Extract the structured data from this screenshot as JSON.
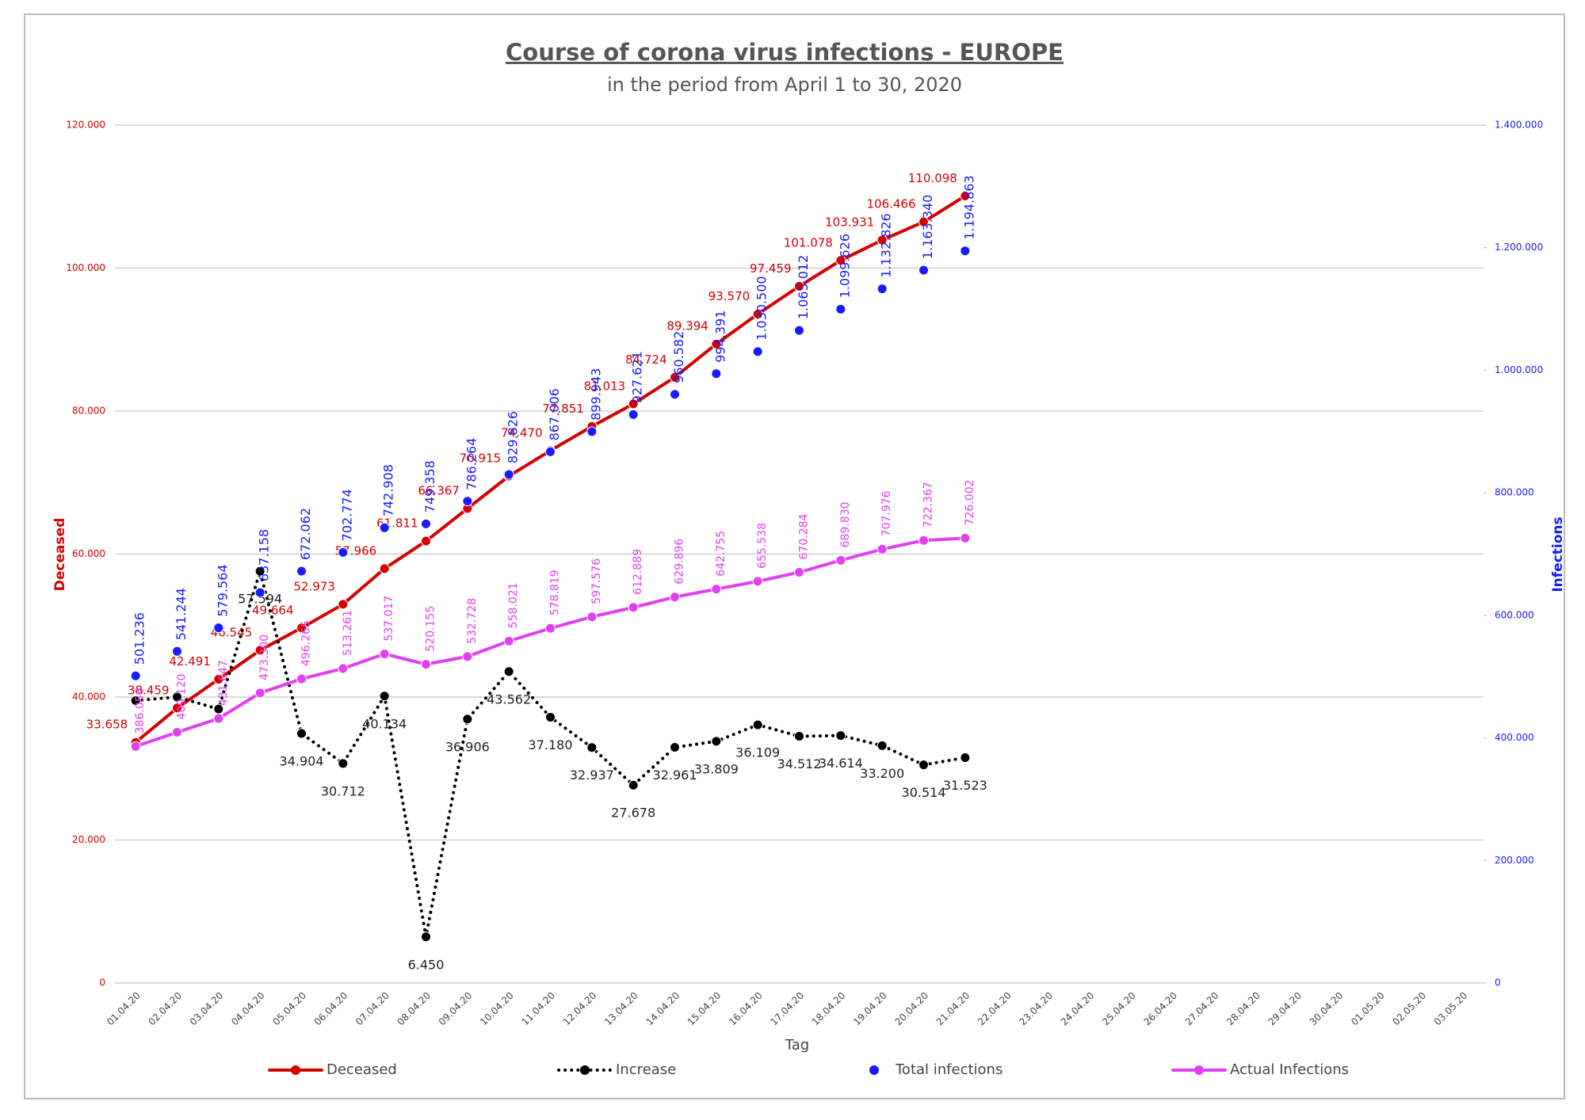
{
  "chart_data": {
    "type": "line",
    "title": "Course of corona virus infections - EUROPE",
    "subtitle": "in the period from April 1 to 30, 2020",
    "x_label": "Tag",
    "y_label": "Deceased",
    "y2_label": "Infections",
    "grid": true,
    "legend": "bottom",
    "categories": [
      "01.04.20",
      "02.04.20",
      "03.04.20",
      "04.04.20",
      "05.04.20",
      "06.04.20",
      "07.04.20",
      "08.04.20",
      "09.04.20",
      "10.04.20",
      "11.04.20",
      "12.04.20",
      "13.04.20",
      "14.04.20",
      "15.04.20",
      "16.04.20",
      "17.04.20",
      "18.04.20",
      "19.04.20",
      "20.04.20",
      "21.04.20",
      "22.04.20",
      "23.04.20",
      "24.04.20",
      "25.04.20",
      "26.04.20",
      "27.04.20",
      "28.04.20",
      "29.04.20",
      "30.04.20",
      "01.05.20",
      "02.05.20",
      "03.05.20"
    ],
    "ylim": [
      0,
      120000
    ],
    "yticks": [
      0,
      {
        "value": 20000,
        "label": "20.000"
      },
      {
        "value": 40000,
        "label": "40.000"
      },
      {
        "value": 60000,
        "label": "60.000"
      },
      {
        "value": 80000,
        "label": "80.000"
      },
      {
        "value": 100000,
        "label": "100.000"
      },
      {
        "value": 120000,
        "label": "120.000"
      }
    ],
    "y2lim": [
      0,
      1400000
    ],
    "y2ticks": [
      0,
      {
        "value": 200000,
        "label": "200.000"
      },
      {
        "value": 400000,
        "label": "400.000"
      },
      {
        "value": 600000,
        "label": "600.000"
      },
      {
        "value": 800000,
        "label": "800.000"
      },
      {
        "value": 1000000,
        "label": "1.000.000"
      },
      {
        "value": 1200000,
        "label": "1.200.000"
      },
      {
        "value": 1400000,
        "label": "1.400.000"
      }
    ],
    "series": [
      {
        "name": "Deceased",
        "color": "#d40000",
        "style": "solid",
        "values": [
          33658,
          38459,
          42491,
          46545,
          49664,
          52973,
          57966,
          61811,
          66367,
          70915,
          74470,
          77851,
          81013,
          84724,
          89394,
          93570,
          97459,
          101078,
          103931,
          106466,
          110098,
          null,
          null,
          null,
          null,
          null,
          null,
          null,
          null,
          null,
          null,
          null,
          null
        ],
        "value_labels": [
          "33.658",
          "38.459",
          "42.491",
          "46.545",
          "49.664",
          "52.973",
          "57.966",
          "61.811",
          "66.367",
          "70.915",
          "74.470",
          "77.851",
          "81.013",
          "84.724",
          "89.394",
          "93.570",
          "97.459",
          "101.078",
          "103.931",
          "106.466",
          "110.098",
          null,
          null,
          null,
          null,
          null,
          null,
          null,
          null,
          null,
          null,
          null,
          null
        ]
      },
      {
        "name": "Increase",
        "color": "#000000",
        "style": "dotted",
        "values": [
          39500,
          40008,
          38320,
          57594,
          34904,
          30712,
          40134,
          6450,
          36906,
          43562,
          37180,
          32937,
          27678,
          32961,
          33809,
          36109,
          34512,
          34614,
          33200,
          30514,
          31523,
          null,
          null,
          null,
          null,
          null,
          null,
          null,
          null,
          null,
          null,
          null,
          null
        ],
        "value_labels": [
          null,
          null,
          null,
          "57.594",
          "34.904",
          "30.712",
          "40.134",
          "6.450",
          "36.906",
          "43.562",
          "37.180",
          "32.937",
          "27.678",
          "32.961",
          "33.809",
          "36.109",
          "34.512",
          "34.614",
          "33.200",
          "30.514",
          "31.523",
          null,
          null,
          null,
          null,
          null,
          null,
          null,
          null,
          null,
          null,
          null,
          null
        ]
      },
      {
        "name": "Total infections",
        "color": "#1a1aff",
        "style": "markers",
        "axis": "y2",
        "values": [
          501236,
          541244,
          579564,
          637158,
          672062,
          702774,
          742908,
          749358,
          786264,
          829826,
          867006,
          899943,
          927621,
          960582,
          994391,
          1030500,
          1065012,
          1099626,
          1132826,
          1163340,
          1194863,
          null,
          null,
          null,
          null,
          null,
          null,
          null,
          null,
          null,
          null,
          null,
          null
        ],
        "value_labels": [
          "501.236",
          "541.244",
          "579.564",
          "637.158",
          "672.062",
          "702.774",
          "742.908",
          "749.358",
          "786.264",
          "829.826",
          "867.006",
          "899.943",
          "927.621",
          "960.582",
          "994.391",
          "1.030.500",
          "1.065.012",
          "1.099.626",
          "1.132.826",
          "1.163.340",
          "1.194.863",
          null,
          null,
          null,
          null,
          null,
          null,
          null,
          null,
          null,
          null,
          null,
          null
        ]
      },
      {
        "name": "Actual Infections",
        "color": "#e040f0",
        "style": "solid",
        "axis": "y2",
        "values": [
          386056,
          409120,
          431647,
          473300,
          496265,
          513261,
          537017,
          520155,
          532728,
          558021,
          578819,
          597576,
          612889,
          629896,
          642755,
          655538,
          670284,
          689830,
          707976,
          722367,
          726002,
          null,
          null,
          null,
          null,
          null,
          null,
          null,
          null,
          null,
          null,
          null,
          null
        ],
        "value_labels": [
          "386.056",
          "409.120",
          "431.647",
          "473.300",
          "496.265",
          "513.261",
          "537.017",
          "520.155",
          "532.728",
          "558.021",
          "578.819",
          "597.576",
          "612.889",
          "629.896",
          "642.755",
          "655.538",
          "670.284",
          "689.830",
          "707.976",
          "722.367",
          "726.002",
          null,
          null,
          null,
          null,
          null,
          null,
          null,
          null,
          null,
          null,
          null,
          null
        ]
      }
    ]
  }
}
